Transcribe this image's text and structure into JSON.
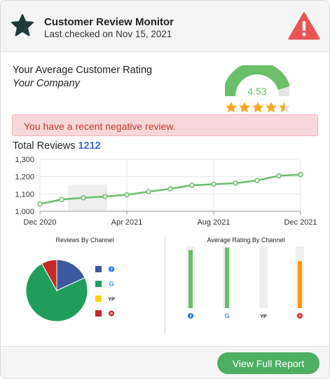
{
  "header": {
    "title": "Customer Review Monitor",
    "subtitle": "Last checked on Nov 15, 2021",
    "icons": [
      "star-icon",
      "alert-triangle-icon"
    ]
  },
  "rating": {
    "heading": "Your Average Customer Rating",
    "company": "Your Company",
    "value": "4.53",
    "max": 5,
    "stars": 4.5
  },
  "alert_banner": "You have a recent negative review.",
  "total_reviews": {
    "label": "Total Reviews",
    "count": "1212"
  },
  "colors": {
    "green": "#6abf69",
    "star": "#f5a623",
    "alert_red": "#e74c3c",
    "facebook": "#3b5aa0",
    "google": "#1e9e5a",
    "yelp": "#ffd400",
    "other": "#c62828",
    "orange_bar": "#ff9800"
  },
  "chart_data": [
    {
      "type": "line",
      "title": "",
      "x": [
        "Dec 2020",
        "Jan 2021",
        "Feb 2021",
        "Mar 2021",
        "Apr 2021",
        "May 2021",
        "Jun 2021",
        "Jul 2021",
        "Aug 2021",
        "Sep 2021",
        "Oct 2021",
        "Nov 2021",
        "Dec 2021"
      ],
      "values": [
        1042,
        1068,
        1078,
        1085,
        1095,
        1113,
        1130,
        1150,
        1156,
        1162,
        1178,
        1205,
        1212
      ],
      "xticks": [
        "Dec 2020",
        "Apr 2021",
        "Aug 2021",
        "Dec 2021"
      ],
      "yticks": [
        "1,000",
        "1,100",
        "1,200",
        "1,300"
      ],
      "ylim": [
        1000,
        1300
      ],
      "grid": true
    },
    {
      "type": "pie",
      "title": "Reviews By Channel",
      "labels": [
        "facebook-icon",
        "google-icon",
        "yelp-icon",
        "other-icon"
      ],
      "legend_labels": [
        "f",
        "G",
        "YP",
        "◉"
      ],
      "values": [
        18,
        73,
        0,
        8
      ],
      "legend": "right"
    },
    {
      "type": "bar",
      "title": "Average Rating By Channel",
      "categories": [
        "facebook-icon",
        "google-icon",
        "yelp-icon",
        "other-icon"
      ],
      "category_labels": [
        "f",
        "G",
        "YP",
        "◉"
      ],
      "values": [
        4.7,
        4.9,
        0,
        3.8
      ],
      "ylim": [
        0,
        5
      ]
    }
  ],
  "footer": {
    "button_label": "View Full Report"
  }
}
